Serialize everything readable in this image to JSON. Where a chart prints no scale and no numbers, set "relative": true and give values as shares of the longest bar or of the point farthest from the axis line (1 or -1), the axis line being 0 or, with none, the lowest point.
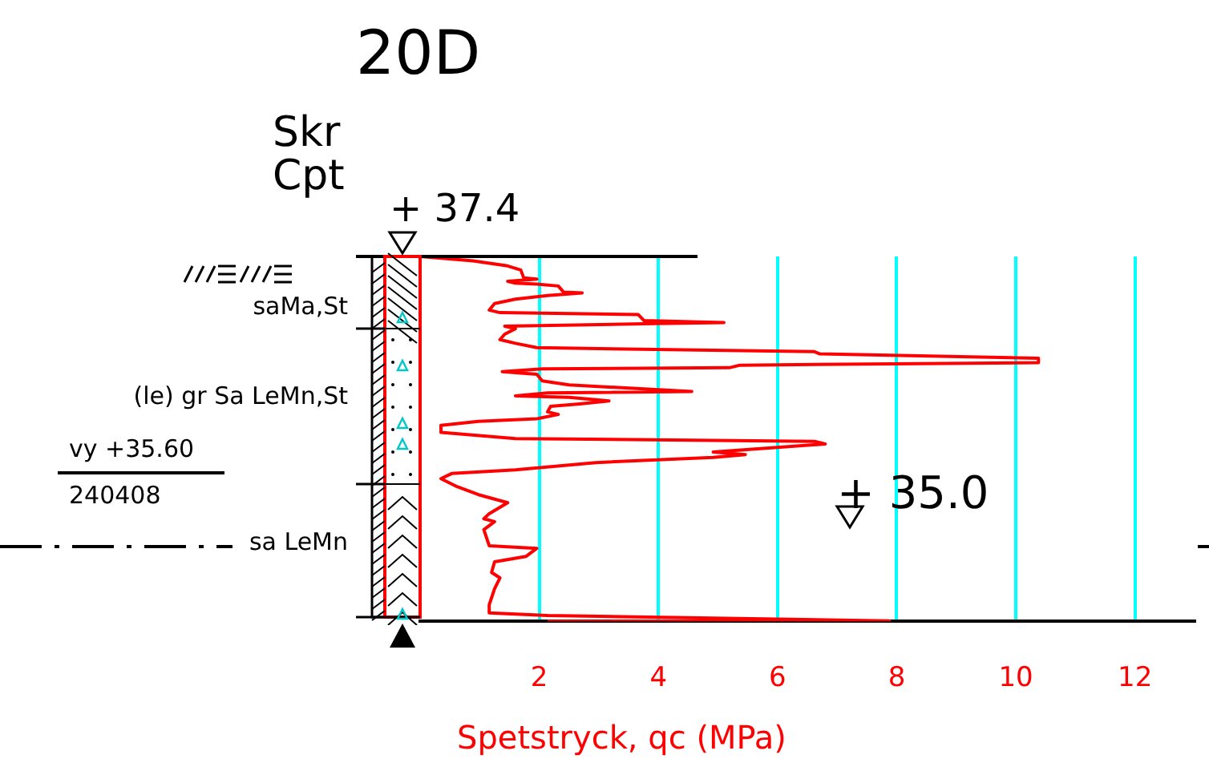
{
  "chart_data": {
    "type": "line",
    "title": "20D",
    "xlabel": "Spetstryck, qc (MPa)",
    "annotations": [
      "Skr",
      "Cpt",
      "+ 37.4",
      "saMa,St",
      "(le) gr Sa LeMn,St",
      "vy +35.60",
      "240408",
      "sa LeMn",
      "+ 35.0"
    ],
    "relative": true,
    "xlim": [
      0,
      13
    ],
    "xticks": [
      2,
      4,
      6,
      8,
      10,
      12
    ],
    "grid": "x",
    "tick_labels": "x",
    "series": [
      {
        "color": "#ff0000",
        "x": [
          0.0,
          0.89,
          1.47,
          1.69,
          1.74,
          1.96,
          1.47,
          1.6,
          1.96,
          2.32,
          2.41,
          2.72,
          2.14,
          1.6,
          1.25,
          1.16,
          1.34,
          3.66,
          3.76,
          5.1,
          3.93,
          1.42,
          1.6,
          1.42,
          1.34,
          1.6,
          1.96,
          6.62,
          6.71,
          10.38,
          10.38,
          5.37,
          5.19,
          2.05,
          1.38,
          1.96,
          2.05,
          2.5,
          4.56,
          2.14,
          1.6,
          2.5,
          3.17,
          2.68,
          2.19,
          2.14,
          2.32,
          1.96,
          0.98,
          0.35,
          0.35,
          1.6,
          6.62,
          6.8,
          4.92,
          5.46,
          4.92,
          2.95,
          1.6,
          0.53,
          0.35,
          0.62,
          0.98,
          1.47,
          1.16,
          1.07,
          1.25,
          1.07,
          1.16,
          1.96,
          1.78,
          1.25,
          1.2,
          1.34,
          1.25,
          1.16,
          1.16,
          2.14,
          7.88,
          2.14
        ],
        "values": [
          1.0,
          0.988,
          0.974,
          0.963,
          0.941,
          0.938,
          0.932,
          0.927,
          0.924,
          0.919,
          0.902,
          0.9,
          0.893,
          0.883,
          0.871,
          0.853,
          0.846,
          0.841,
          0.824,
          0.819,
          0.816,
          0.809,
          0.802,
          0.787,
          0.772,
          0.762,
          0.75,
          0.739,
          0.733,
          0.721,
          0.709,
          0.702,
          0.695,
          0.692,
          0.684,
          0.677,
          0.659,
          0.648,
          0.63,
          0.626,
          0.618,
          0.614,
          0.604,
          0.596,
          0.589,
          0.574,
          0.567,
          0.555,
          0.548,
          0.537,
          0.518,
          0.501,
          0.493,
          0.486,
          0.464,
          0.457,
          0.449,
          0.435,
          0.415,
          0.405,
          0.391,
          0.369,
          0.347,
          0.325,
          0.295,
          0.281,
          0.273,
          0.251,
          0.207,
          0.2,
          0.178,
          0.163,
          0.134,
          0.119,
          0.089,
          0.045,
          0.023,
          0.016,
          0.001,
          0.0
        ]
      }
    ]
  }
}
